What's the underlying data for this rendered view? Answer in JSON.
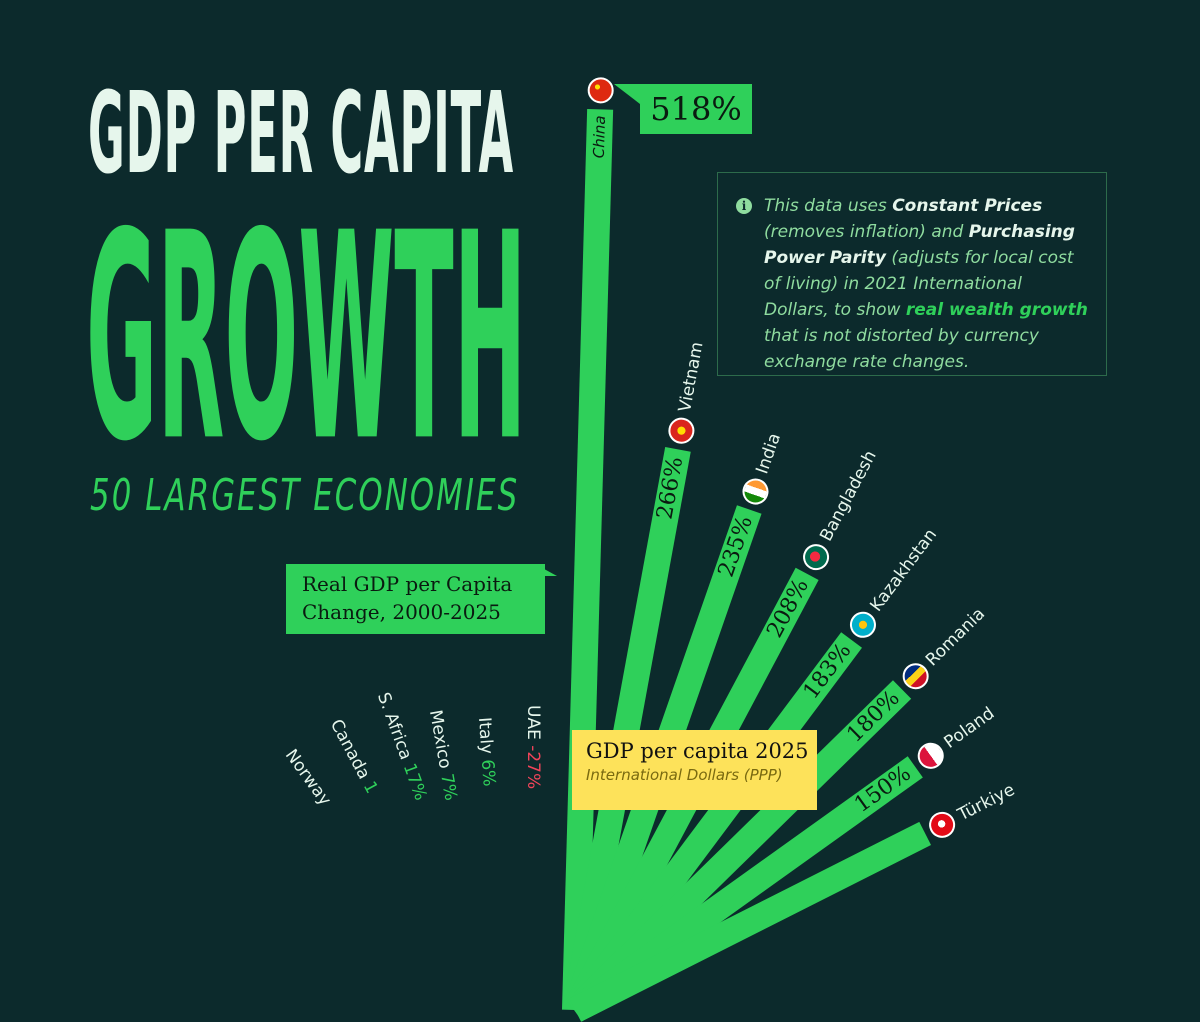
{
  "title": {
    "line1": "GDP PER CAPITA",
    "line2": "GROWTH",
    "subtitle": "50 LARGEST ECONOMIES"
  },
  "info": {
    "icon": "info-icon",
    "parts": [
      "This data uses ",
      "Constant Prices",
      " (removes inflation) and ",
      "Purchasing Power Parity",
      " (adjusts for local cost of living) in 2021 International Dollars, to show ",
      "real wealth growth",
      " that is not distorted by currency exchange rate changes."
    ]
  },
  "callout": "Real GDP per Capita Change, 2000-2025",
  "legend_box": {
    "title": "GDP per capita 2025",
    "subtitle": "International Dollars (PPP)"
  },
  "colors": {
    "background": "#0c2a2c",
    "positive": "#2fd05a",
    "negative": "#f0445a",
    "highlight": "#fde25a"
  },
  "chart_data": {
    "type": "bar",
    "layout": "radial",
    "title": "GDP PER CAPITA GROWTH — 50 LARGEST ECONOMIES",
    "metric": "Real GDP per Capita Change, 2000-2025",
    "unit": "%",
    "bars": [
      {
        "country": "China",
        "value": 518,
        "label": "518%",
        "flag": "china"
      },
      {
        "country": "Vietnam",
        "value": 266,
        "label": "266%",
        "flag": "vietnam"
      },
      {
        "country": "India",
        "value": 235,
        "label": "235%",
        "flag": "india"
      },
      {
        "country": "Bangladesh",
        "value": 208,
        "label": "208%",
        "flag": "bangladesh"
      },
      {
        "country": "Kazakhstan",
        "value": 183,
        "label": "183%",
        "flag": "kazakhstan"
      },
      {
        "country": "Romania",
        "value": 180,
        "label": "180%",
        "flag": "romania"
      },
      {
        "country": "Poland",
        "value": 150,
        "label": "150%",
        "flag": "poland"
      },
      {
        "country": "Türkiye",
        "value": null,
        "label": "",
        "flag": "turkiye"
      }
    ],
    "low_end": [
      {
        "country": "UAE",
        "label": "-27%",
        "value": -27
      },
      {
        "country": "Italy",
        "label": "6%",
        "value": 6
      },
      {
        "country": "Mexico",
        "label": "7%",
        "value": 7
      },
      {
        "country": "S. Africa",
        "label": "17%",
        "value": 17
      },
      {
        "country": "Canada",
        "label": "1",
        "value": null
      },
      {
        "country": "Norway",
        "label": "",
        "value": null
      }
    ]
  }
}
